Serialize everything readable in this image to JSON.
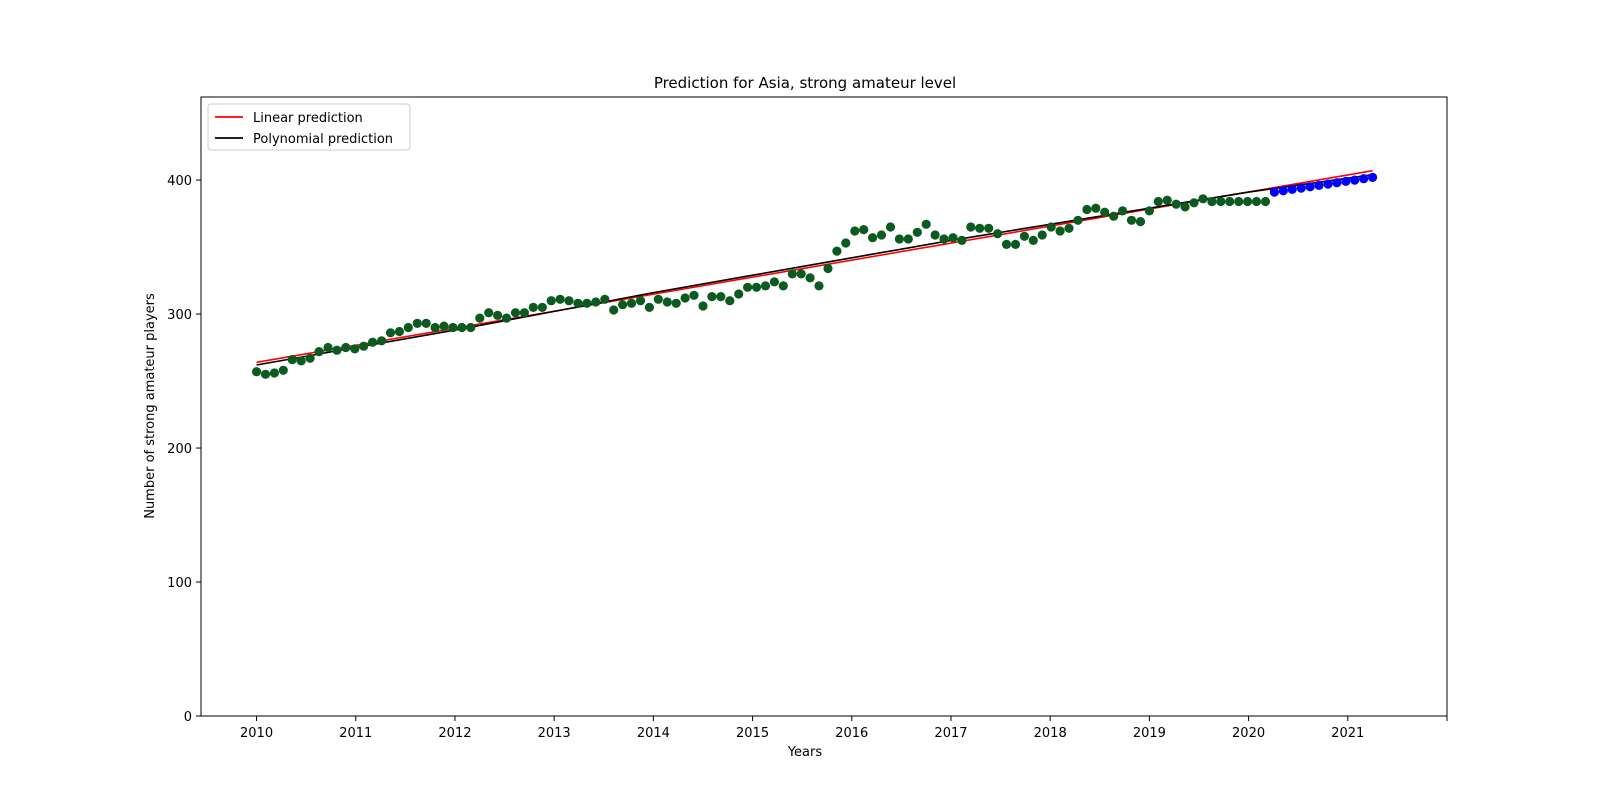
{
  "chart_data": {
    "type": "scatter",
    "title": "Prediction for Asia, strong amateur level",
    "xlabel": "Years",
    "ylabel": "Number of strong amateur players",
    "xlim": [
      2009.44,
      2022.0
    ],
    "ylim": [
      0,
      462
    ],
    "x_ticks": [
      2010,
      2011,
      2012,
      2013,
      2014,
      2015,
      2016,
      2017,
      2018,
      2019,
      2020,
      2021
    ],
    "y_ticks": [
      0,
      100,
      200,
      300,
      400
    ],
    "grid": false,
    "legend": {
      "placement": "top-left",
      "entries": [
        {
          "label": "Linear prediction",
          "color": "#ff0000"
        },
        {
          "label": "Polynomial prediction",
          "color": "#000000"
        }
      ]
    },
    "series": [
      {
        "kind": "points",
        "color": "#0b5a1f",
        "x": [
          2010.0,
          2010.09,
          2010.18,
          2010.27,
          2010.36,
          2010.45,
          2010.54,
          2010.63,
          2010.72,
          2010.81,
          2010.9,
          2010.99,
          2011.08,
          2011.17,
          2011.26,
          2011.35,
          2011.44,
          2011.53,
          2011.62,
          2011.71,
          2011.8,
          2011.89,
          2011.98,
          2012.07,
          2012.16,
          2012.25,
          2012.34,
          2012.43,
          2012.52,
          2012.61,
          2012.7,
          2012.79,
          2012.88,
          2012.97,
          2013.06,
          2013.15,
          2013.24,
          2013.33,
          2013.42,
          2013.51,
          2013.6,
          2013.69,
          2013.78,
          2013.87,
          2013.96,
          2014.05,
          2014.14,
          2014.23,
          2014.32,
          2014.41,
          2014.5,
          2014.59,
          2014.68,
          2014.77,
          2014.86,
          2014.95,
          2015.04,
          2015.13,
          2015.22,
          2015.31,
          2015.4,
          2015.49,
          2015.58,
          2015.67,
          2015.76,
          2015.85,
          2015.94,
          2016.03,
          2016.12,
          2016.21,
          2016.3,
          2016.39,
          2016.48,
          2016.57,
          2016.66,
          2016.75,
          2016.84,
          2016.93,
          2017.02,
          2017.11,
          2017.2,
          2017.29,
          2017.38,
          2017.47,
          2017.56,
          2017.65,
          2017.74,
          2017.83,
          2017.92,
          2018.01,
          2018.1,
          2018.19,
          2018.28,
          2018.37,
          2018.46,
          2018.55,
          2018.64,
          2018.73,
          2018.82,
          2018.91,
          2019.0,
          2019.09,
          2019.18,
          2019.27,
          2019.36,
          2019.45,
          2019.54,
          2019.63,
          2019.72,
          2019.81,
          2019.9,
          2019.99,
          2020.08,
          2020.17
        ],
        "y": [
          257,
          255,
          256,
          258,
          266,
          265,
          267,
          272,
          275,
          273,
          275,
          274,
          276,
          279,
          280,
          286,
          287,
          290,
          293,
          293,
          290,
          291,
          290,
          290,
          290,
          297,
          301,
          299,
          297,
          301,
          301,
          305,
          305,
          310,
          311,
          310,
          308,
          308,
          309,
          311,
          303,
          307,
          308,
          310,
          305,
          311,
          309,
          308,
          312,
          314,
          306,
          313,
          313,
          310,
          315,
          320,
          320,
          321,
          324,
          321,
          330,
          330,
          327,
          321,
          334,
          347,
          353,
          362,
          363,
          357,
          359,
          365,
          356,
          356,
          361,
          367,
          359,
          356,
          357,
          355,
          365,
          364,
          364,
          360,
          352,
          352,
          358,
          355,
          359,
          365,
          362,
          364,
          370,
          378,
          379,
          376,
          373,
          377,
          370,
          369,
          377,
          384,
          385,
          382,
          380,
          383,
          386,
          384,
          384,
          384,
          384,
          384,
          384,
          384
        ]
      },
      {
        "kind": "points",
        "color": "#0000ff",
        "x": [
          2020.26,
          2020.35,
          2020.44,
          2020.53,
          2020.62,
          2020.71,
          2020.8,
          2020.89,
          2020.98,
          2021.07,
          2021.16,
          2021.25
        ],
        "y": [
          391,
          392,
          393,
          394,
          395,
          396,
          397,
          398,
          399,
          400,
          401,
          402
        ]
      },
      {
        "kind": "line",
        "name": "Linear prediction",
        "color": "#ff0000",
        "x": [
          2010.0,
          2021.25
        ],
        "y": [
          264,
          407
        ]
      },
      {
        "kind": "line",
        "name": "Polynomial prediction",
        "color": "#000000",
        "x": [
          2010.0,
          2011.0,
          2012.0,
          2013.0,
          2014.0,
          2015.0,
          2016.0,
          2017.0,
          2018.0,
          2019.0,
          2020.0,
          2021.25
        ],
        "y": [
          262,
          275,
          288,
          302,
          316,
          329,
          342,
          355,
          367,
          379,
          391,
          404
        ]
      }
    ]
  }
}
